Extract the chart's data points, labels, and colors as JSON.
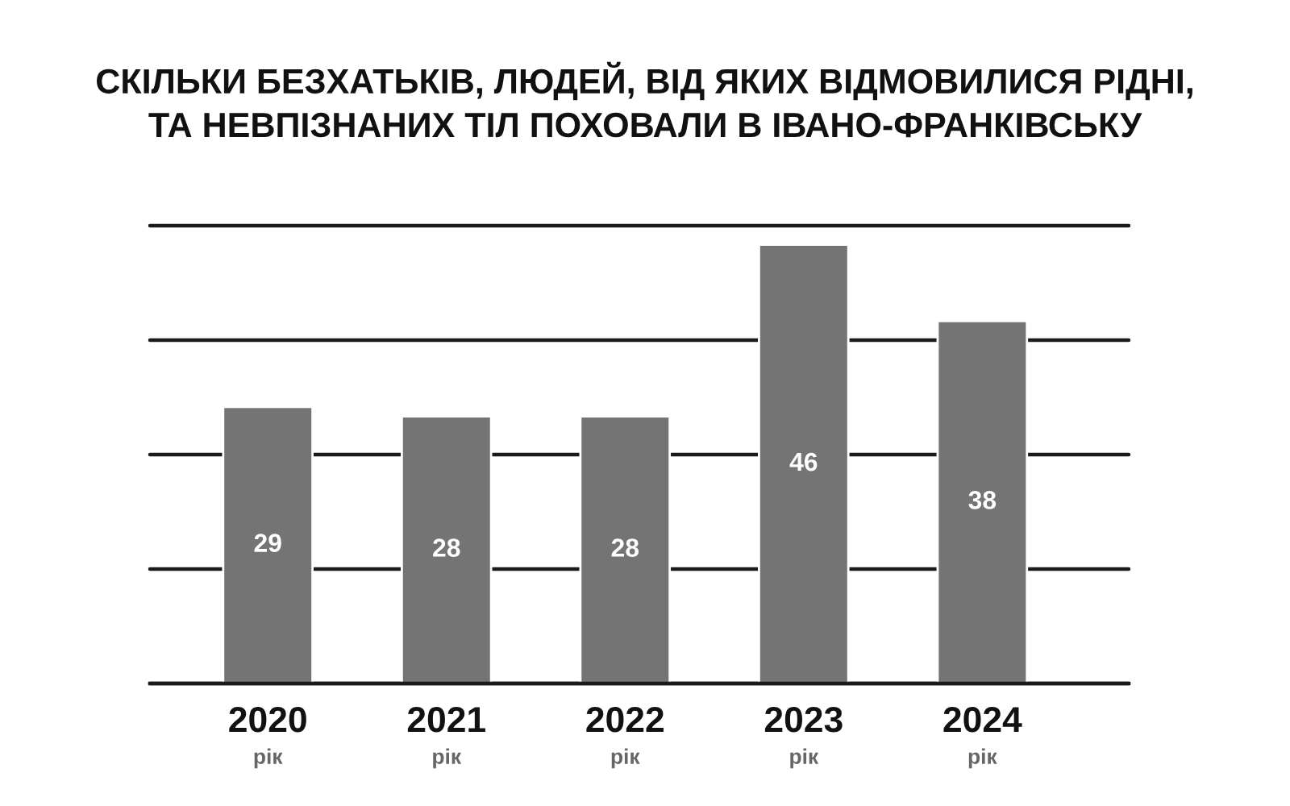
{
  "chart_data": {
    "type": "bar",
    "title": "СКІЛЬКИ БЕЗХАТЬКІВ, ЛЮДЕЙ, ВІД ЯКИХ ВІДМОВИЛИСЯ РІДНІ,\nТА НЕВПІЗНАНИХ ТІЛ ПОХОВАЛИ В ІВАНО-ФРАНКІВСЬКУ",
    "categories": [
      "2020\nрік",
      "2021\nрік",
      "2022\nрік",
      "2023\nрік",
      "2024\nрік"
    ],
    "values": [
      29,
      28,
      28,
      46,
      38
    ],
    "color": "#747474",
    "data_labels": true,
    "ylim": [
      0,
      48
    ],
    "yticks": [
      {
        "value": 0,
        "label": null
      },
      {
        "value": 12,
        "label": null
      },
      {
        "value": 24,
        "label": null
      },
      {
        "value": 36,
        "label": null
      },
      {
        "value": 48,
        "label": null
      }
    ],
    "grid": "y",
    "tick_labels": "x"
  }
}
